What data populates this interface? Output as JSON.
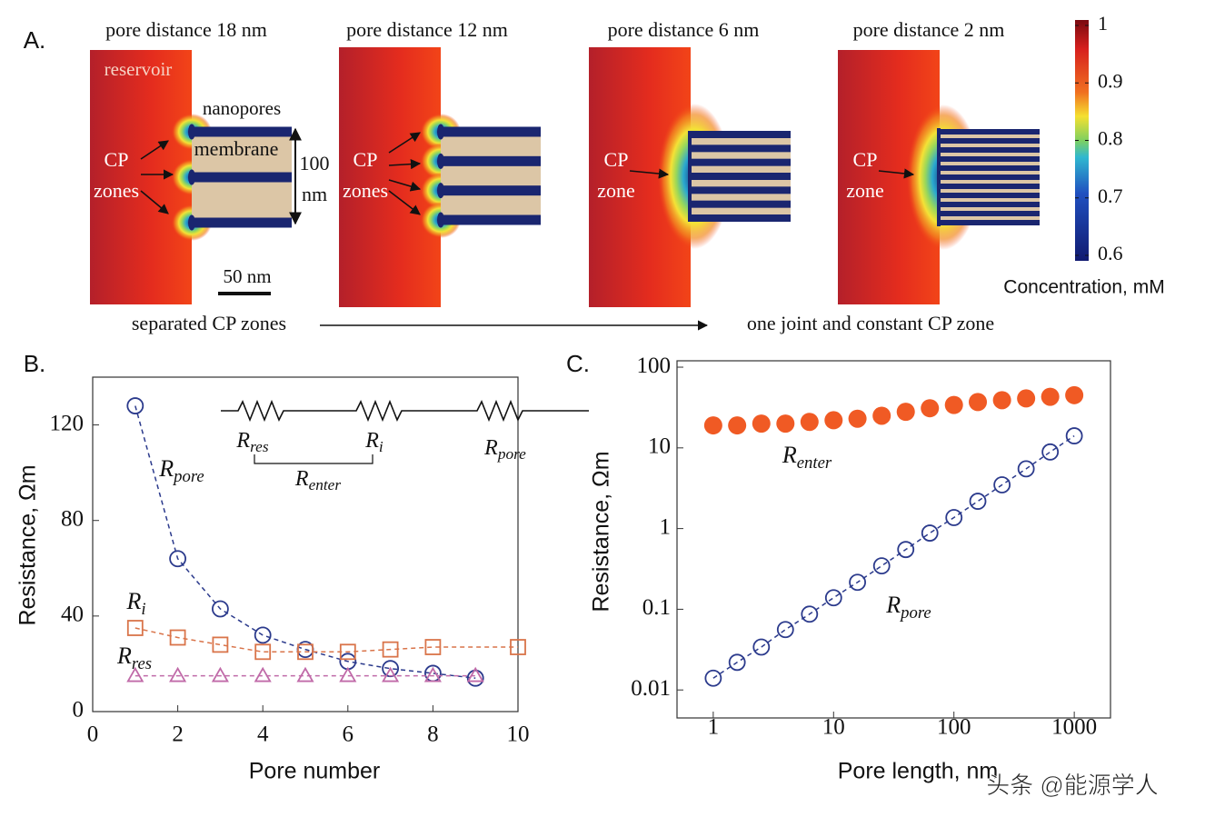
{
  "panel_a": {
    "label": "A.",
    "titles": [
      "pore distance 18 nm",
      "pore distance 12 nm",
      "pore distance 6 nm",
      "pore distance 2 nm"
    ],
    "reservoir": "reservoir",
    "nanopores": "nanopores",
    "membrane": "membrane",
    "cp": "CP",
    "zones": "zones",
    "zone": "zone",
    "height_value": "100",
    "height_unit": "nm",
    "scale_bar": "50 nm",
    "trend_from": "separated CP zones",
    "trend_to": "one joint and constant CP zone",
    "colorbar": {
      "label": "Concentration, mM",
      "lim": [
        0.6,
        1
      ],
      "ticks": [
        1,
        0.9,
        0.8,
        0.7,
        0.6
      ]
    }
  },
  "chart_data": [
    {
      "type": "scatter",
      "panel_label": "B.",
      "xlabel": "Pore number",
      "ylabel": "Resistance, Ωm",
      "xlim": [
        0,
        10
      ],
      "ylim": [
        0,
        140
      ],
      "xticks": [
        0,
        2,
        4,
        6,
        8,
        10
      ],
      "yticks": [
        0,
        40,
        80,
        120
      ],
      "series": [
        {
          "name": "R",
          "subscript": "pore",
          "marker": "circle",
          "filled": false,
          "color": "#2b3a8c",
          "x": [
            1,
            2,
            3,
            4,
            5,
            6,
            7,
            8,
            9
          ],
          "values": [
            128,
            64,
            43,
            32,
            26,
            21,
            18,
            16,
            14
          ]
        },
        {
          "name": "R",
          "subscript": "i",
          "marker": "square",
          "filled": false,
          "color": "#d9744a",
          "x": [
            1,
            2,
            3,
            4,
            5,
            6,
            7,
            8,
            10
          ],
          "values": [
            35,
            31,
            28,
            25,
            25,
            25,
            26,
            27,
            27
          ]
        },
        {
          "name": "R",
          "subscript": "res",
          "marker": "triangle",
          "filled": false,
          "color": "#c06aa8",
          "x": [
            1,
            2,
            3,
            4,
            5,
            6,
            7,
            8,
            9
          ],
          "values": [
            15,
            15,
            15,
            15,
            15,
            15,
            15,
            15,
            15
          ]
        }
      ],
      "circuit": [
        {
          "name": "R",
          "subscript": "res"
        },
        {
          "name": "R",
          "subscript": "i"
        },
        {
          "name": "R",
          "subscript": "pore"
        },
        {
          "name": "R",
          "subscript": "enter"
        }
      ]
    },
    {
      "type": "scatter",
      "panel_label": "C.",
      "xlabel": "Pore length, nm",
      "ylabel": "Resistance, Ωm",
      "xscale": "log",
      "yscale": "log",
      "xlim": [
        0.5,
        2000
      ],
      "ylim": [
        0.0045,
        120
      ],
      "xticks": [
        1,
        10,
        100,
        1000
      ],
      "yticks": [
        0.01,
        0.1,
        1,
        10,
        100
      ],
      "series": [
        {
          "name": "R",
          "subscript": "enter",
          "marker": "circle",
          "filled": true,
          "color": "#f05a24",
          "x": [
            1,
            1.58,
            2.51,
            3.98,
            6.31,
            10,
            15.8,
            25.1,
            39.8,
            63.1,
            100,
            158,
            251,
            398,
            631,
            1000
          ],
          "values": [
            19,
            19,
            20,
            20,
            21,
            22,
            23,
            25,
            28,
            31,
            34,
            37,
            39,
            41,
            43,
            45
          ]
        },
        {
          "name": "R",
          "subscript": "pore",
          "marker": "circle",
          "filled": false,
          "color": "#2b3a8c",
          "x": [
            1,
            1.58,
            2.51,
            3.98,
            6.31,
            10,
            15.8,
            25.1,
            39.8,
            63.1,
            100,
            158,
            251,
            398,
            631,
            1000
          ],
          "values": [
            0.014,
            0.022,
            0.034,
            0.056,
            0.087,
            0.139,
            0.216,
            0.345,
            0.55,
            0.88,
            1.37,
            2.18,
            3.48,
            5.5,
            8.9,
            14.1
          ]
        }
      ]
    }
  ],
  "watermark": "头条 @能源学人"
}
